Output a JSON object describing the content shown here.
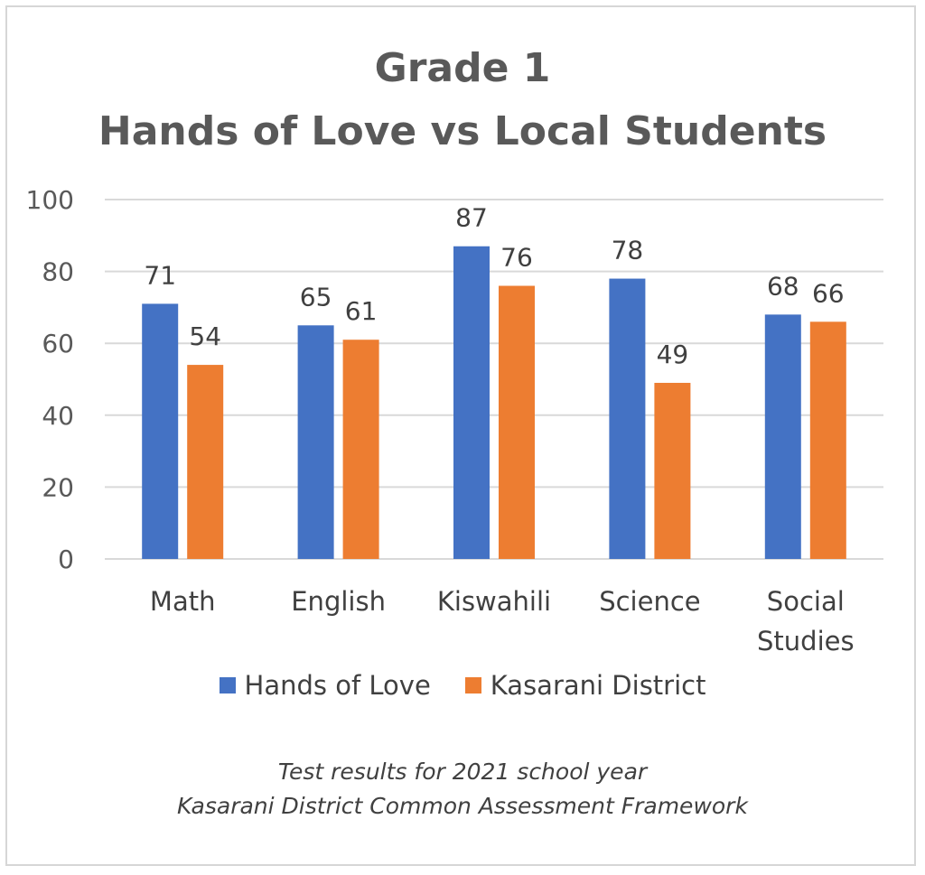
{
  "chart_data": {
    "type": "bar",
    "title": [
      "Grade 1",
      "Hands of Love vs Local Students"
    ],
    "categories": [
      "Math",
      "English",
      "Kiswahili",
      "Science",
      "Social Studies"
    ],
    "category_lines": [
      [
        "Math"
      ],
      [
        "English"
      ],
      [
        "Kiswahili"
      ],
      [
        "Science"
      ],
      [
        "Social",
        "Studies"
      ]
    ],
    "series": [
      {
        "name": "Hands of Love",
        "values": [
          71,
          65,
          87,
          78,
          68
        ],
        "color": "#4472C4"
      },
      {
        "name": "Kasarani District",
        "values": [
          54,
          61,
          76,
          49,
          66
        ],
        "color": "#ED7D31"
      }
    ],
    "ylim": [
      0,
      100
    ],
    "yticks": [
      0,
      20,
      40,
      60,
      80,
      100
    ],
    "grid": true,
    "legend_position": "bottom",
    "data_labels": true
  },
  "footnote": {
    "line1": "Test results for 2021 school year",
    "line2": "Kasarani District Common Assessment Framework"
  }
}
